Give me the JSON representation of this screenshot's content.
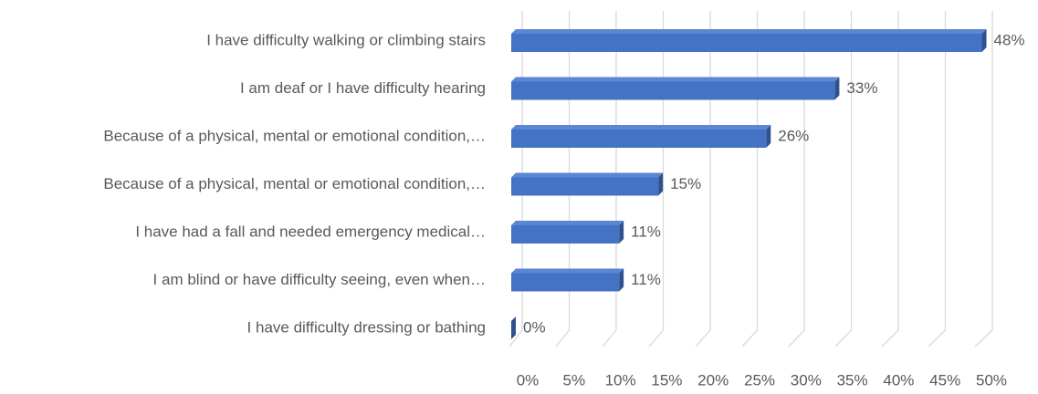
{
  "chart_data": {
    "type": "bar3d",
    "orientation": "horizontal",
    "categories": [
      "I have difficulty walking or climbing stairs",
      "I am deaf or I have difficulty hearing",
      "Because of a physical, mental or emotional condition,…",
      "Because of a physical, mental or emotional condition,…",
      "I have had a fall and needed emergency medical…",
      "I am blind or have difficulty seeing, even when…",
      "I have difficulty dressing or bathing"
    ],
    "values": [
      48,
      33,
      26,
      15,
      11,
      11,
      0
    ],
    "value_labels": [
      "48%",
      "33%",
      "26%",
      "15%",
      "11%",
      "11%",
      "0%"
    ],
    "color": "#4472c4",
    "xlim": [
      0,
      50
    ],
    "xticks": [
      {
        "value": 0,
        "label": "0%"
      },
      {
        "value": 5,
        "label": "5%"
      },
      {
        "value": 10,
        "label": "10%"
      },
      {
        "value": 15,
        "label": "15%"
      },
      {
        "value": 20,
        "label": "20%"
      },
      {
        "value": 25,
        "label": "25%"
      },
      {
        "value": 30,
        "label": "30%"
      },
      {
        "value": 35,
        "label": "35%"
      },
      {
        "value": 40,
        "label": "40%"
      },
      {
        "value": 45,
        "label": "45%"
      },
      {
        "value": 50,
        "label": "50%"
      }
    ],
    "grid": true
  }
}
